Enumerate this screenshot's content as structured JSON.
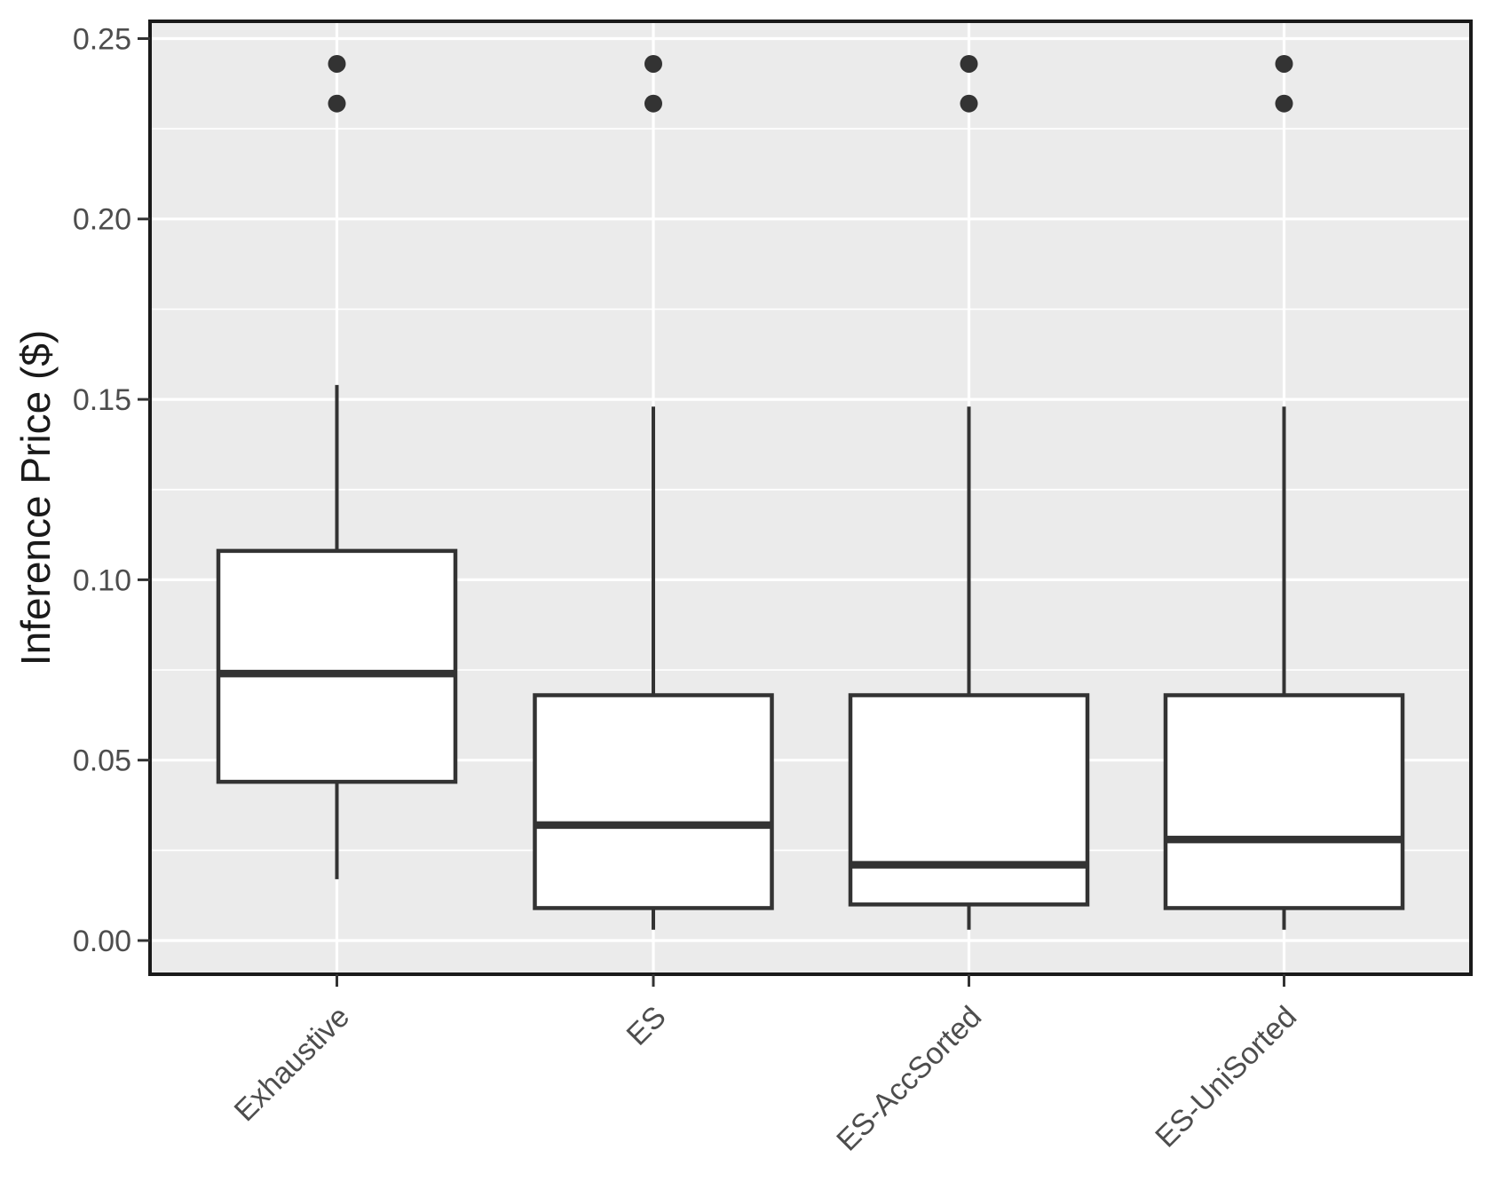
{
  "figure": {
    "y_axis_title": "Inference Price ($)"
  },
  "chart_data": {
    "type": "boxplot",
    "title": "",
    "xlabel": "",
    "ylabel": "Inference Price ($)",
    "categories": [
      "Exhaustive",
      "ES",
      "ES-AccSorted",
      "ES-UniSorted"
    ],
    "ylim": [
      0.0,
      0.25
    ],
    "y_ticks": [
      0.0,
      0.05,
      0.1,
      0.15,
      0.2,
      0.25
    ],
    "y_tick_labels": [
      "0.00",
      "0.05",
      "0.10",
      "0.15",
      "0.20",
      "0.25"
    ],
    "grid": {
      "major": "on",
      "minor": "on",
      "legend": "none"
    },
    "series": [
      {
        "name": "Exhaustive",
        "whisker_low": 0.017,
        "q1": 0.044,
        "median": 0.074,
        "q3": 0.108,
        "whisker_high": 0.154,
        "outliers": [
          0.232,
          0.243
        ]
      },
      {
        "name": "ES",
        "whisker_low": 0.003,
        "q1": 0.009,
        "median": 0.032,
        "q3": 0.068,
        "whisker_high": 0.148,
        "outliers": [
          0.232,
          0.243
        ]
      },
      {
        "name": "ES-AccSorted",
        "whisker_low": 0.003,
        "q1": 0.01,
        "median": 0.021,
        "q3": 0.068,
        "whisker_high": 0.148,
        "outliers": [
          0.232,
          0.243
        ]
      },
      {
        "name": "ES-UniSorted",
        "whisker_low": 0.003,
        "q1": 0.009,
        "median": 0.028,
        "q3": 0.068,
        "whisker_high": 0.148,
        "outliers": [
          0.232,
          0.243
        ]
      }
    ],
    "colors": {
      "panel_bg": "#EBEBEB",
      "grid": "#FFFFFF",
      "box_fill": "#FFFFFF",
      "box_stroke": "#333333",
      "median_stroke": "#333333",
      "whisker_stroke": "#333333",
      "outlier_fill": "#333333",
      "panel_border": "#1A1A1A",
      "tick_mark": "#333333",
      "tick_label": "#4D4D4D",
      "axis_title": "#1A1A1A"
    }
  }
}
